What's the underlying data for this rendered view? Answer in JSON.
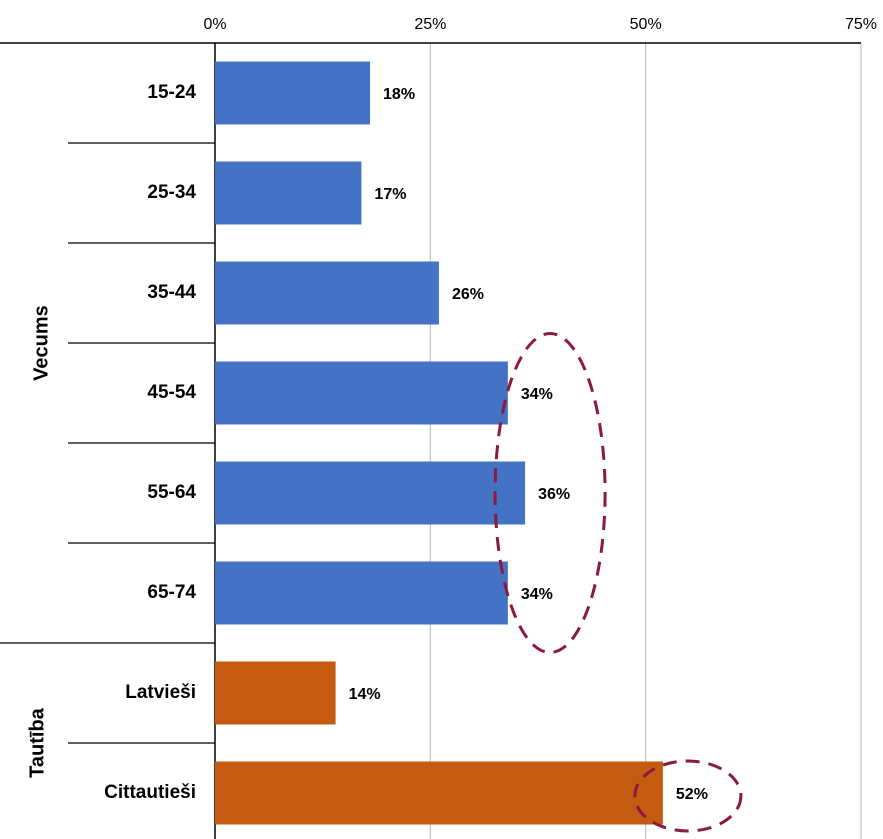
{
  "chart_data": {
    "type": "bar",
    "orientation": "horizontal",
    "x_ticks": [
      "0%",
      "25%",
      "50%",
      "75%"
    ],
    "xlim": [
      0,
      75
    ],
    "x_axis_position": "top",
    "grid": true,
    "groups": [
      {
        "label": "Vecums",
        "color": "#4472C4",
        "categories": [
          "15-24",
          "25-34",
          "35-44",
          "45-54",
          "55-64",
          "65-74"
        ],
        "values": [
          18,
          17,
          26,
          34,
          36,
          34
        ],
        "value_labels": [
          "18%",
          "17%",
          "26%",
          "34%",
          "36%",
          "34%"
        ]
      },
      {
        "label": "Tautība",
        "color": "#C55A11",
        "categories": [
          "Latvieši",
          "Cittautieši"
        ],
        "values": [
          14,
          52
        ],
        "value_labels": [
          "14%",
          "52%"
        ]
      }
    ],
    "highlights": [
      {
        "group": 0,
        "from": 3,
        "to": 5,
        "shape": "dashed-ellipse",
        "color": "#8B1A3E"
      },
      {
        "group": 1,
        "from": 1,
        "to": 1,
        "shape": "dashed-ellipse",
        "color": "#8B1A3E"
      }
    ]
  }
}
